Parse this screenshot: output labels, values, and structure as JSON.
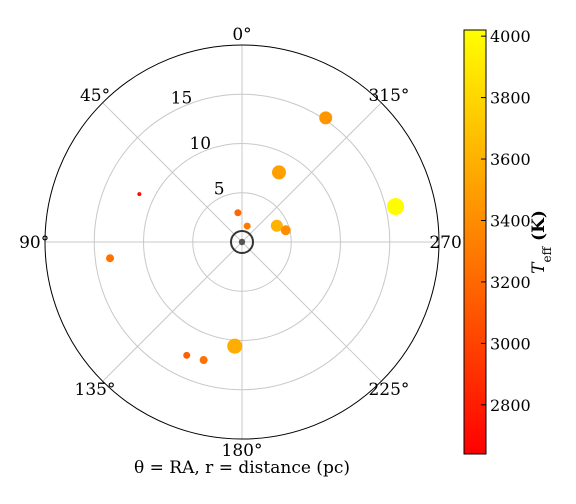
{
  "chart_data": {
    "type": "scatter",
    "subtype": "polar",
    "xlabel": "θ = RA, r = distance (pc)",
    "theta_direction": "clockwise",
    "theta_zero_location": "top",
    "theta_ticks": [
      {
        "angle": 0,
        "label": "0°"
      },
      {
        "angle": 45,
        "label": "45°"
      },
      {
        "angle": 90,
        "label": "90°"
      },
      {
        "angle": 135,
        "label": "135°"
      },
      {
        "angle": 180,
        "label": "180°"
      },
      {
        "angle": 225,
        "label": "225°"
      },
      {
        "angle": 270,
        "label": "270°"
      },
      {
        "angle": 315,
        "label": "315°"
      }
    ],
    "r_ticks": [
      {
        "value": 5,
        "label": "5"
      },
      {
        "value": 10,
        "label": "10"
      },
      {
        "value": 15,
        "label": "15"
      }
    ],
    "rlim": [
      0,
      20
    ],
    "grid": true,
    "center_marker": "Sun",
    "colorbar": {
      "label_main": "T",
      "label_sub": "eff",
      "label_unit": " (K)",
      "range": [
        2640,
        4020
      ],
      "ticks": [
        "2800",
        "3000",
        "3200",
        "3400",
        "3600",
        "3800",
        "4000"
      ],
      "colors": [
        "#ff0000",
        "#ff8000",
        "#ffff00"
      ]
    },
    "points": [
      {
        "theta": 8,
        "r": 3.0,
        "teff": 3200,
        "size": 3.5
      },
      {
        "theta": 342,
        "r": 1.7,
        "teff": 3300,
        "size": 3.5
      },
      {
        "theta": 295,
        "r": 3.9,
        "teff": 3600,
        "size": 6
      },
      {
        "theta": 285,
        "r": 4.6,
        "teff": 3400,
        "size": 5
      },
      {
        "theta": 332,
        "r": 8.0,
        "teff": 3500,
        "size": 7
      },
      {
        "theta": 326,
        "r": 15.2,
        "teff": 3450,
        "size": 6.5
      },
      {
        "theta": 283,
        "r": 16.0,
        "teff": 4000,
        "size": 8.5
      },
      {
        "theta": 65,
        "r": 11.5,
        "teff": 2700,
        "size": 2
      },
      {
        "theta": 97,
        "r": 13.5,
        "teff": 3250,
        "size": 4
      },
      {
        "theta": 176,
        "r": 10.6,
        "teff": 3580,
        "size": 7.5
      },
      {
        "theta": 154,
        "r": 12.8,
        "teff": 3150,
        "size": 3.5
      },
      {
        "theta": 162,
        "r": 12.6,
        "teff": 3250,
        "size": 4
      }
    ]
  }
}
